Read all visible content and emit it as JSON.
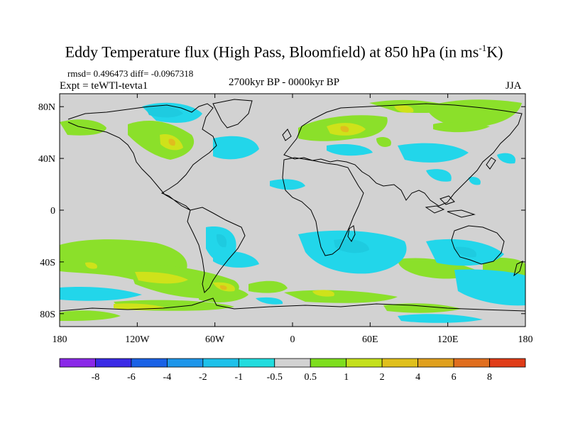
{
  "title": {
    "main": "Eddy Temperature flux (High Pass, Bloomfield) at 850 hPa (in ms",
    "sup": "-1",
    "end": "K)"
  },
  "stats": "rmsd= 0.496473 diff= -0.0967318",
  "experiment": "Expt = teWTl-tevta1",
  "period": "2700kyr BP - 0000kyr BP",
  "season": "JJA",
  "colors": {
    "background": "#d2d2d2",
    "coast": "#000000",
    "green": "#8be02a",
    "yellow": "#cfe21a",
    "gold": "#e0bd1e",
    "lightblue": "#22d6ea",
    "cyan": "#1ecbe0"
  },
  "axes": {
    "x_ticks": [
      "180",
      "120W",
      "60W",
      "0",
      "60E",
      "120E",
      "180"
    ],
    "y_ticks": [
      "80N",
      "40N",
      "0",
      "40S",
      "80S"
    ]
  },
  "colorbar": {
    "colors": [
      "#8a28e8",
      "#3a2ae6",
      "#1a62e6",
      "#1e96ea",
      "#1ec1ea",
      "#22dcde",
      "#d2d2d2",
      "#7ede1e",
      "#c4e01c",
      "#e0c01c",
      "#e0a01e",
      "#e06e1e",
      "#e03c18"
    ],
    "labels": [
      "-8",
      "-6",
      "-4",
      "-2",
      "-1",
      "-0.5",
      "0.5",
      "1",
      "2",
      "4",
      "6",
      "8"
    ]
  }
}
